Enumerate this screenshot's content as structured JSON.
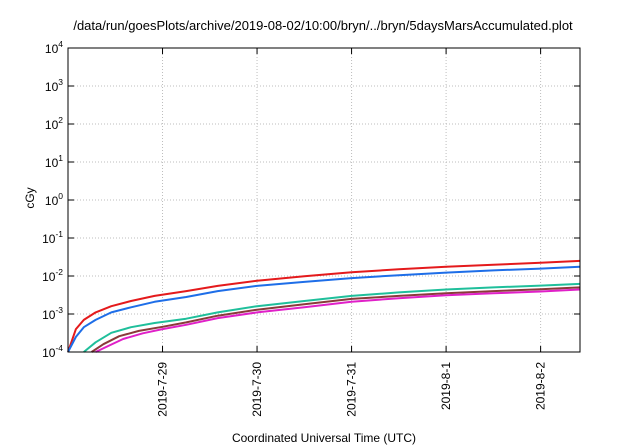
{
  "chart_data": {
    "type": "line",
    "title": "/data/run/goesPlots/archive/2019-08-02/10:00/bryn/../bryn/5daysMarsAccumulated.plot",
    "xlabel": "Coordinated Universal Time (UTC)",
    "ylabel": "cGy",
    "y_scale": "log",
    "ylim": [
      0.0001,
      10000
    ],
    "xlim": [
      "2019-07-28 00:00",
      "2019-08-02 10:00"
    ],
    "grid": true,
    "y_ticks": [
      {
        "base": "10",
        "exp": "-4",
        "value": 0.0001
      },
      {
        "base": "10",
        "exp": "-3",
        "value": 0.001
      },
      {
        "base": "10",
        "exp": "-2",
        "value": 0.01
      },
      {
        "base": "10",
        "exp": "-1",
        "value": 0.1
      },
      {
        "base": "10",
        "exp": "0",
        "value": 1
      },
      {
        "base": "10",
        "exp": "1",
        "value": 10
      },
      {
        "base": "10",
        "exp": "2",
        "value": 100
      },
      {
        "base": "10",
        "exp": "3",
        "value": 1000
      },
      {
        "base": "10",
        "exp": "4",
        "value": 10000
      }
    ],
    "x_ticks": [
      {
        "label": "2019-7-29",
        "value": "2019-07-29 00:00"
      },
      {
        "label": "2019-7-30",
        "value": "2019-07-30 00:00"
      },
      {
        "label": "2019-7-31",
        "value": "2019-07-31 00:00"
      },
      {
        "label": "2019-8-1",
        "value": "2019-08-01 00:00"
      },
      {
        "label": "2019-8-2",
        "value": "2019-08-02 00:00"
      }
    ],
    "series": [
      {
        "color": "#e41a1c",
        "x": [
          "2019-07-28 00:00",
          "2019-07-28 02:00",
          "2019-07-28 04:00",
          "2019-07-28 07:00",
          "2019-07-28 11:00",
          "2019-07-28 16:00",
          "2019-07-28 22:00",
          "2019-07-29 06:00",
          "2019-07-29 14:00",
          "2019-07-30 00:00",
          "2019-07-30 12:00",
          "2019-07-31 00:00",
          "2019-07-31 12:00",
          "2019-08-01 00:00",
          "2019-08-01 12:00",
          "2019-08-02 00:00",
          "2019-08-02 10:00"
        ],
        "values": [
          0.0001,
          0.0004,
          0.0007,
          0.0011,
          0.0016,
          0.0022,
          0.003,
          0.004,
          0.0055,
          0.0075,
          0.0098,
          0.0125,
          0.015,
          0.0175,
          0.0198,
          0.0222,
          0.025
        ]
      },
      {
        "color": "#1e6ee8",
        "x": [
          "2019-07-28 00:00",
          "2019-07-28 02:00",
          "2019-07-28 04:00",
          "2019-07-28 07:00",
          "2019-07-28 11:00",
          "2019-07-28 16:00",
          "2019-07-28 22:00",
          "2019-07-29 06:00",
          "2019-07-29 14:00",
          "2019-07-30 00:00",
          "2019-07-30 12:00",
          "2019-07-31 00:00",
          "2019-07-31 12:00",
          "2019-08-01 00:00",
          "2019-08-01 12:00",
          "2019-08-02 00:00",
          "2019-08-02 10:00"
        ],
        "values": [
          0.0001,
          0.00025,
          0.00045,
          0.0007,
          0.0011,
          0.0015,
          0.0021,
          0.0028,
          0.004,
          0.0055,
          0.007,
          0.0088,
          0.0105,
          0.0123,
          0.014,
          0.0157,
          0.0175
        ]
      },
      {
        "color": "#1fbf9b",
        "x": [
          "2019-07-28 04:00",
          "2019-07-28 07:00",
          "2019-07-28 11:00",
          "2019-07-28 16:00",
          "2019-07-28 22:00",
          "2019-07-29 06:00",
          "2019-07-29 14:00",
          "2019-07-30 00:00",
          "2019-07-30 12:00",
          "2019-07-31 00:00",
          "2019-07-31 12:00",
          "2019-08-01 00:00",
          "2019-08-01 12:00",
          "2019-08-02 00:00",
          "2019-08-02 10:00"
        ],
        "values": [
          0.0001,
          0.00018,
          0.00032,
          0.00045,
          0.00058,
          0.00075,
          0.0011,
          0.0016,
          0.0022,
          0.003,
          0.0037,
          0.0044,
          0.005,
          0.0056,
          0.0062
        ]
      },
      {
        "color": "#8a3a3a",
        "x": [
          "2019-07-28 06:00",
          "2019-07-28 09:00",
          "2019-07-28 13:00",
          "2019-07-28 18:00",
          "2019-07-29 00:00",
          "2019-07-29 06:00",
          "2019-07-29 14:00",
          "2019-07-30 00:00",
          "2019-07-30 12:00",
          "2019-07-31 00:00",
          "2019-07-31 12:00",
          "2019-08-01 00:00",
          "2019-08-01 12:00",
          "2019-08-02 00:00",
          "2019-08-02 10:00"
        ],
        "values": [
          0.0001,
          0.00016,
          0.00026,
          0.00036,
          0.00046,
          0.0006,
          0.0009,
          0.0013,
          0.0018,
          0.0025,
          0.003,
          0.0035,
          0.004,
          0.0045,
          0.005
        ]
      },
      {
        "color": "#e020c8",
        "x": [
          "2019-07-28 07:00",
          "2019-07-28 10:00",
          "2019-07-28 14:00",
          "2019-07-28 19:00",
          "2019-07-29 00:00",
          "2019-07-29 06:00",
          "2019-07-29 14:00",
          "2019-07-30 00:00",
          "2019-07-30 12:00",
          "2019-07-31 00:00",
          "2019-07-31 12:00",
          "2019-08-01 00:00",
          "2019-08-01 12:00",
          "2019-08-02 00:00",
          "2019-08-02 10:00"
        ],
        "values": [
          0.0001,
          0.00014,
          0.00022,
          0.00031,
          0.0004,
          0.00052,
          0.00078,
          0.0011,
          0.0015,
          0.0021,
          0.0026,
          0.0031,
          0.0035,
          0.0039,
          0.0044
        ]
      }
    ]
  }
}
